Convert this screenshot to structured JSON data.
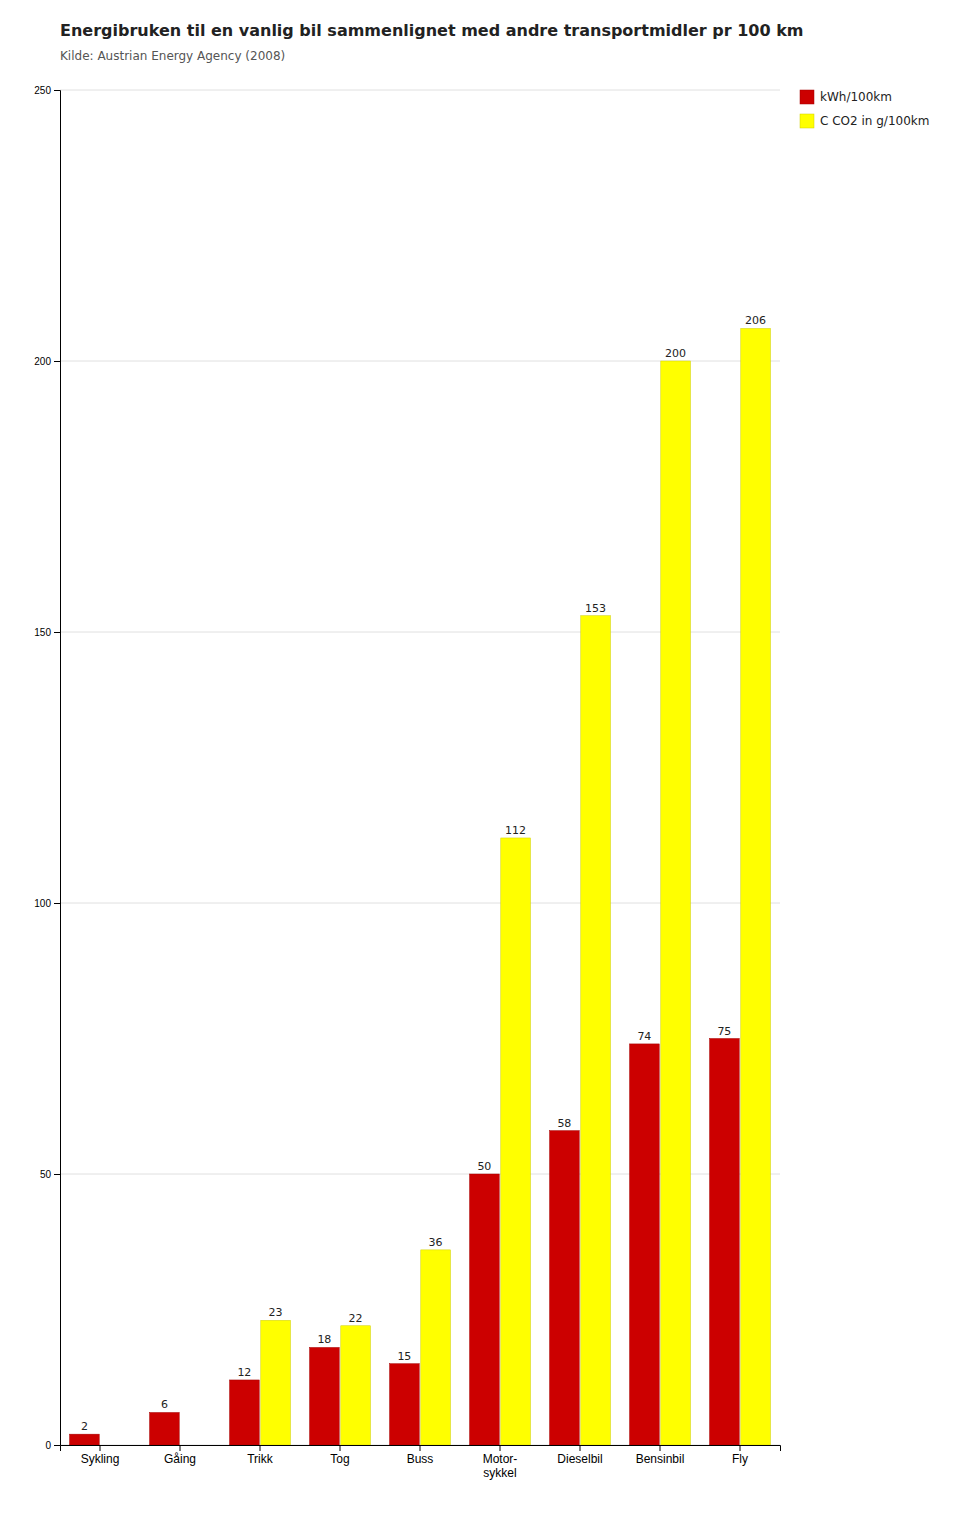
{
  "chart_data": {
    "type": "bar",
    "title": "Energibruken til en vanlig bil sammenlignet med andre transportmidler pr 100 km",
    "subtitle": "Kilde: Austrian Energy Agency (2008)",
    "categories": [
      "Sykling",
      "Gåing",
      "Trikk",
      "Tog",
      "Buss",
      "Motor-\nsykkel",
      "Dieselbil",
      "Bensinbil",
      "Fly"
    ],
    "series": [
      {
        "name": "kWh/100km",
        "color": "#cc0000",
        "values": [
          2,
          6,
          12,
          18,
          15,
          50,
          58,
          74,
          75
        ]
      },
      {
        "name": "C CO2 in g/100km",
        "color": "#ffff00",
        "values": [
          0,
          0,
          23,
          22,
          36,
          112,
          153,
          200,
          206
        ],
        "value_labels": [
          null,
          null,
          "23",
          "22",
          "36",
          "112",
          "153",
          "200",
          "206"
        ]
      }
    ],
    "ylim": [
      0,
      250
    ],
    "yticks": [
      0,
      50,
      100,
      150,
      200,
      250
    ],
    "grid": true,
    "legend": "right",
    "data_labels": true
  }
}
